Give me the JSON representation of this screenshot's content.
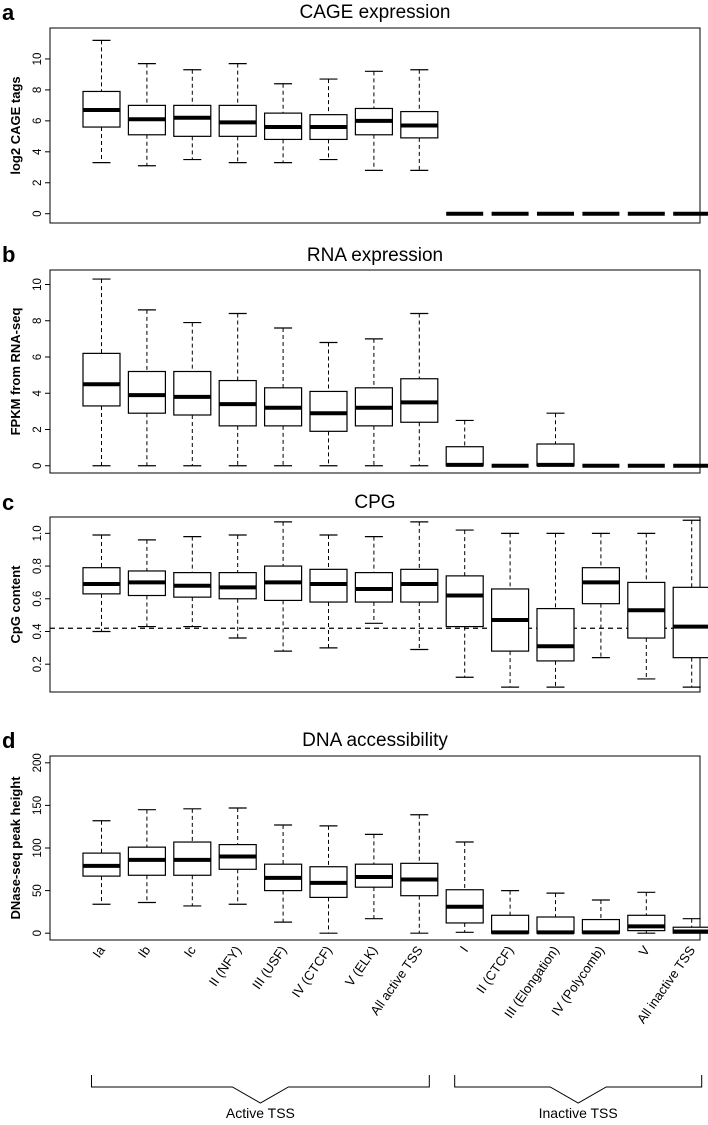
{
  "figure": {
    "categories": [
      "Ia",
      "Ib",
      "Ic",
      "II (NFY)",
      "III (USF)",
      "IV (CTCF)",
      "V (ELK)",
      "All active TSS",
      "I",
      "II (CTCF)",
      "III (Elongation)",
      "IV (Polycomb)",
      "V",
      "All inactive TSS"
    ],
    "groups": [
      {
        "label": "Active TSS",
        "from": 0,
        "to": 7
      },
      {
        "label": "Inactive TSS",
        "from": 8,
        "to": 13
      }
    ]
  },
  "chart_data": [
    {
      "type": "boxplot",
      "panel": "a",
      "title": "CAGE expression",
      "ylabel": "log2 CAGE tags",
      "ylim": [
        -0.6,
        12.0
      ],
      "yticks": [
        0,
        2,
        4,
        6,
        8,
        10
      ],
      "ytick_labels": [
        "0",
        "2",
        "4",
        "6",
        "8",
        "10"
      ],
      "boxes": [
        {
          "min": 3.3,
          "q1": 5.6,
          "median": 6.7,
          "q3": 7.9,
          "max": 11.2
        },
        {
          "min": 3.1,
          "q1": 5.1,
          "median": 6.1,
          "q3": 7.0,
          "max": 9.7
        },
        {
          "min": 3.5,
          "q1": 5.0,
          "median": 6.2,
          "q3": 7.0,
          "max": 9.3
        },
        {
          "min": 3.3,
          "q1": 5.0,
          "median": 5.9,
          "q3": 7.0,
          "max": 9.7
        },
        {
          "min": 3.3,
          "q1": 4.8,
          "median": 5.6,
          "q3": 6.5,
          "max": 8.4
        },
        {
          "min": 3.5,
          "q1": 4.8,
          "median": 5.6,
          "q3": 6.4,
          "max": 8.7
        },
        {
          "min": 2.8,
          "q1": 5.1,
          "median": 6.0,
          "q3": 6.8,
          "max": 9.2
        },
        {
          "min": 2.8,
          "q1": 4.9,
          "median": 5.7,
          "q3": 6.6,
          "max": 9.3
        },
        {
          "min": 0,
          "q1": 0,
          "median": 0,
          "q3": 0,
          "max": 0
        },
        {
          "min": 0,
          "q1": 0,
          "median": 0,
          "q3": 0,
          "max": 0
        },
        {
          "min": 0,
          "q1": 0,
          "median": 0,
          "q3": 0,
          "max": 0
        },
        {
          "min": 0,
          "q1": 0,
          "median": 0,
          "q3": 0,
          "max": 0
        },
        {
          "min": 0,
          "q1": 0,
          "median": 0,
          "q3": 0,
          "max": 0
        },
        {
          "min": 0,
          "q1": 0,
          "median": 0,
          "q3": 0,
          "max": 0
        }
      ]
    },
    {
      "type": "boxplot",
      "panel": "b",
      "title": "RNA expression",
      "ylabel": "FPKM from RNA-seq",
      "ylim": [
        -0.4,
        10.8
      ],
      "yticks": [
        0,
        2,
        4,
        6,
        8,
        10
      ],
      "ytick_labels": [
        "0",
        "2",
        "4",
        "6",
        "8",
        "10"
      ],
      "boxes": [
        {
          "min": 0,
          "q1": 3.3,
          "median": 4.5,
          "q3": 6.2,
          "max": 10.3
        },
        {
          "min": 0,
          "q1": 2.9,
          "median": 3.9,
          "q3": 5.2,
          "max": 8.6
        },
        {
          "min": 0,
          "q1": 2.8,
          "median": 3.8,
          "q3": 5.2,
          "max": 7.9
        },
        {
          "min": 0,
          "q1": 2.2,
          "median": 3.4,
          "q3": 4.7,
          "max": 8.4
        },
        {
          "min": 0,
          "q1": 2.2,
          "median": 3.2,
          "q3": 4.3,
          "max": 7.6
        },
        {
          "min": 0,
          "q1": 1.9,
          "median": 2.9,
          "q3": 4.1,
          "max": 6.8
        },
        {
          "min": 0,
          "q1": 2.2,
          "median": 3.2,
          "q3": 4.3,
          "max": 7.0
        },
        {
          "min": 0,
          "q1": 2.4,
          "median": 3.5,
          "q3": 4.8,
          "max": 8.4
        },
        {
          "min": 0,
          "q1": 0,
          "median": 0.05,
          "q3": 1.05,
          "max": 2.5
        },
        {
          "min": 0,
          "q1": 0,
          "median": 0,
          "q3": 0,
          "max": 0
        },
        {
          "min": 0,
          "q1": 0,
          "median": 0.05,
          "q3": 1.2,
          "max": 2.9
        },
        {
          "min": 0,
          "q1": 0,
          "median": 0,
          "q3": 0,
          "max": 0
        },
        {
          "min": 0,
          "q1": 0,
          "median": 0,
          "q3": 0,
          "max": 0
        },
        {
          "min": 0,
          "q1": 0,
          "median": 0,
          "q3": 0,
          "max": 0
        }
      ]
    },
    {
      "type": "boxplot",
      "panel": "c",
      "title": "CPG",
      "ylabel": "CpG content",
      "ylim": [
        0.03,
        1.1
      ],
      "yticks": [
        0.2,
        0.4,
        0.6,
        0.8,
        1.0
      ],
      "ytick_labels": [
        "0.2",
        "0.4",
        "0.6",
        "0.8",
        "1.0"
      ],
      "hline": 0.42,
      "boxes": [
        {
          "min": 0.4,
          "q1": 0.63,
          "median": 0.69,
          "q3": 0.79,
          "max": 0.99
        },
        {
          "min": 0.43,
          "q1": 0.62,
          "median": 0.7,
          "q3": 0.77,
          "max": 0.96
        },
        {
          "min": 0.43,
          "q1": 0.61,
          "median": 0.68,
          "q3": 0.76,
          "max": 0.98
        },
        {
          "min": 0.36,
          "q1": 0.6,
          "median": 0.67,
          "q3": 0.76,
          "max": 0.99
        },
        {
          "min": 0.28,
          "q1": 0.59,
          "median": 0.7,
          "q3": 0.8,
          "max": 1.07
        },
        {
          "min": 0.3,
          "q1": 0.58,
          "median": 0.69,
          "q3": 0.78,
          "max": 0.99
        },
        {
          "min": 0.45,
          "q1": 0.58,
          "median": 0.66,
          "q3": 0.76,
          "max": 0.98
        },
        {
          "min": 0.29,
          "q1": 0.58,
          "median": 0.69,
          "q3": 0.78,
          "max": 1.07
        },
        {
          "min": 0.12,
          "q1": 0.43,
          "median": 0.62,
          "q3": 0.74,
          "max": 1.02
        },
        {
          "min": 0.06,
          "q1": 0.28,
          "median": 0.47,
          "q3": 0.66,
          "max": 1.0
        },
        {
          "min": 0.06,
          "q1": 0.22,
          "median": 0.31,
          "q3": 0.54,
          "max": 1.0
        },
        {
          "min": 0.24,
          "q1": 0.57,
          "median": 0.7,
          "q3": 0.79,
          "max": 1.0
        },
        {
          "min": 0.11,
          "q1": 0.36,
          "median": 0.53,
          "q3": 0.7,
          "max": 1.0
        },
        {
          "min": 0.06,
          "q1": 0.24,
          "median": 0.43,
          "q3": 0.67,
          "max": 1.08
        }
      ]
    },
    {
      "type": "boxplot",
      "panel": "d",
      "title": "DNA accessibility",
      "ylabel": "DNase-seq peak height",
      "ylim": [
        -8,
        208
      ],
      "yticks": [
        0,
        50,
        100,
        150,
        200
      ],
      "ytick_labels": [
        "0",
        "50",
        "100",
        "150",
        "200"
      ],
      "boxes": [
        {
          "min": 34,
          "q1": 67,
          "median": 79,
          "q3": 94,
          "max": 132
        },
        {
          "min": 36,
          "q1": 68,
          "median": 86,
          "q3": 101,
          "max": 145
        },
        {
          "min": 32,
          "q1": 68,
          "median": 86,
          "q3": 107,
          "max": 146
        },
        {
          "min": 34,
          "q1": 75,
          "median": 90,
          "q3": 104,
          "max": 147
        },
        {
          "min": 13,
          "q1": 50,
          "median": 65,
          "q3": 81,
          "max": 127
        },
        {
          "min": 0,
          "q1": 42,
          "median": 59,
          "q3": 78,
          "max": 126
        },
        {
          "min": 17,
          "q1": 54,
          "median": 66,
          "q3": 81,
          "max": 116
        },
        {
          "min": 0,
          "q1": 44,
          "median": 63,
          "q3": 82,
          "max": 139
        },
        {
          "min": 1,
          "q1": 12,
          "median": 31,
          "q3": 51,
          "max": 107
        },
        {
          "min": 0,
          "q1": 0,
          "median": 1,
          "q3": 21,
          "max": 50
        },
        {
          "min": 0,
          "q1": 0,
          "median": 1,
          "q3": 19,
          "max": 47
        },
        {
          "min": 0,
          "q1": 0,
          "median": 1,
          "q3": 16,
          "max": 39
        },
        {
          "min": 0,
          "q1": 3,
          "median": 8,
          "q3": 21,
          "max": 48
        },
        {
          "min": 0,
          "q1": 0,
          "median": 2,
          "q3": 7,
          "max": 17
        }
      ]
    }
  ]
}
